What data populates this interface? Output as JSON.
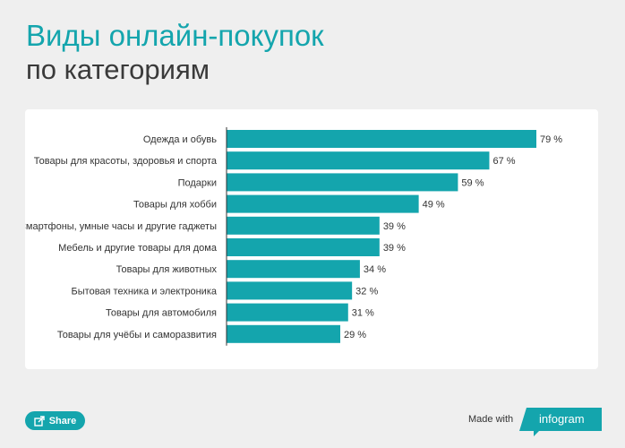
{
  "title_line1": "Виды онлайн-покупок",
  "title_line2": "по категориям",
  "colors": {
    "accent": "#14a5ad",
    "title_dark": "#3a3a3a",
    "background": "#efefef"
  },
  "chart_data": {
    "type": "bar",
    "orientation": "horizontal",
    "categories": [
      "Одежда и обувь",
      "Товары для красоты, здоровья и спорта",
      "Подарки",
      "Товары для хобби",
      "Смартфоны, умные часы и другие гаджеты",
      "Мебель и другие товары для дома",
      "Товары для животных",
      "Бытовая техника и электроника",
      "Товары для автомобиля",
      "Товары для учёбы и саморазвития"
    ],
    "values": [
      79,
      67,
      59,
      49,
      39,
      39,
      34,
      32,
      31,
      29
    ],
    "value_labels": [
      "79 %",
      "67 %",
      "59 %",
      "49 %",
      "39 %",
      "39 %",
      "34 %",
      "32 %",
      "31 %",
      "29 %"
    ],
    "xlim": [
      0,
      80
    ],
    "grid": false,
    "bar_color": "#14a5ad"
  },
  "footer": {
    "share_label": "Share",
    "share_icon": "share-icon",
    "made_with": "Made with",
    "brand": "infogram"
  }
}
